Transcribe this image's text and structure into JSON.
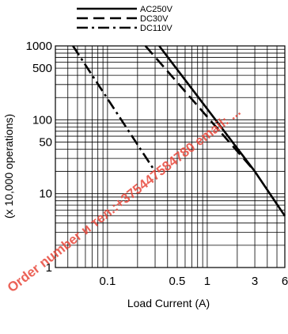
{
  "chart_data": {
    "type": "line",
    "title": "",
    "xlabel": "Load Current (A)",
    "ylabel": "(x 10,000 operations)",
    "x_scale": "log",
    "y_scale": "log",
    "xlim": [
      0.03,
      6
    ],
    "ylim": [
      1,
      1000
    ],
    "grid": true,
    "legend_position": "top",
    "x_ticks": [
      {
        "value": 0.1,
        "label": "0.1"
      },
      {
        "value": 0.5,
        "label": "0.5"
      },
      {
        "value": 1,
        "label": "1"
      },
      {
        "value": 3,
        "label": "3"
      },
      {
        "value": 6,
        "label": "6"
      }
    ],
    "y_ticks": [
      {
        "value": 1,
        "label": "1"
      },
      {
        "value": 10,
        "label": "10"
      },
      {
        "value": 50,
        "label": "50"
      },
      {
        "value": 100,
        "label": "100"
      },
      {
        "value": 500,
        "label": "500"
      },
      {
        "value": 1000,
        "label": "1000"
      }
    ],
    "series": [
      {
        "name": "AC250V",
        "style": "solid",
        "points": [
          [
            0.33,
            1000
          ],
          [
            3.0,
            20
          ],
          [
            6.0,
            5
          ]
        ]
      },
      {
        "name": "DC30V",
        "style": "dashed",
        "points": [
          [
            0.24,
            1000
          ],
          [
            3.0,
            20
          ]
        ]
      },
      {
        "name": "DC110V",
        "style": "dashdot",
        "points": [
          [
            0.045,
            1000
          ],
          [
            0.3,
            20
          ]
        ]
      }
    ]
  },
  "watermark": {
    "text": "Order number и тел.:+375447584780 email: ..."
  }
}
